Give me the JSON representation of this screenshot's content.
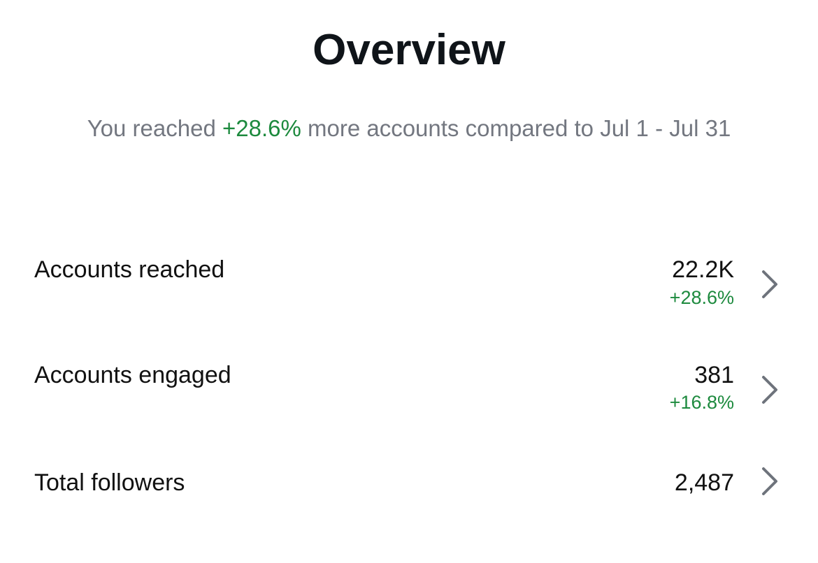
{
  "header": {
    "title": "Overview"
  },
  "summary": {
    "prefix": "You reached ",
    "change": "+28.6%",
    "suffix": " more accounts compared to Jul 1 - Jul 31"
  },
  "metrics": [
    {
      "label": "Accounts reached",
      "value": "22.2K",
      "change": "+28.6%"
    },
    {
      "label": "Accounts engaged",
      "value": "381",
      "change": "+16.8%"
    },
    {
      "label": "Total followers",
      "value": "2,487",
      "change": ""
    }
  ],
  "icons": {
    "row_chevron": "chevron-right-icon"
  },
  "colors": {
    "positive": "#1d8a3e",
    "muted_text": "#737780",
    "title_text": "#0f1419",
    "chevron": "#6e737c"
  }
}
